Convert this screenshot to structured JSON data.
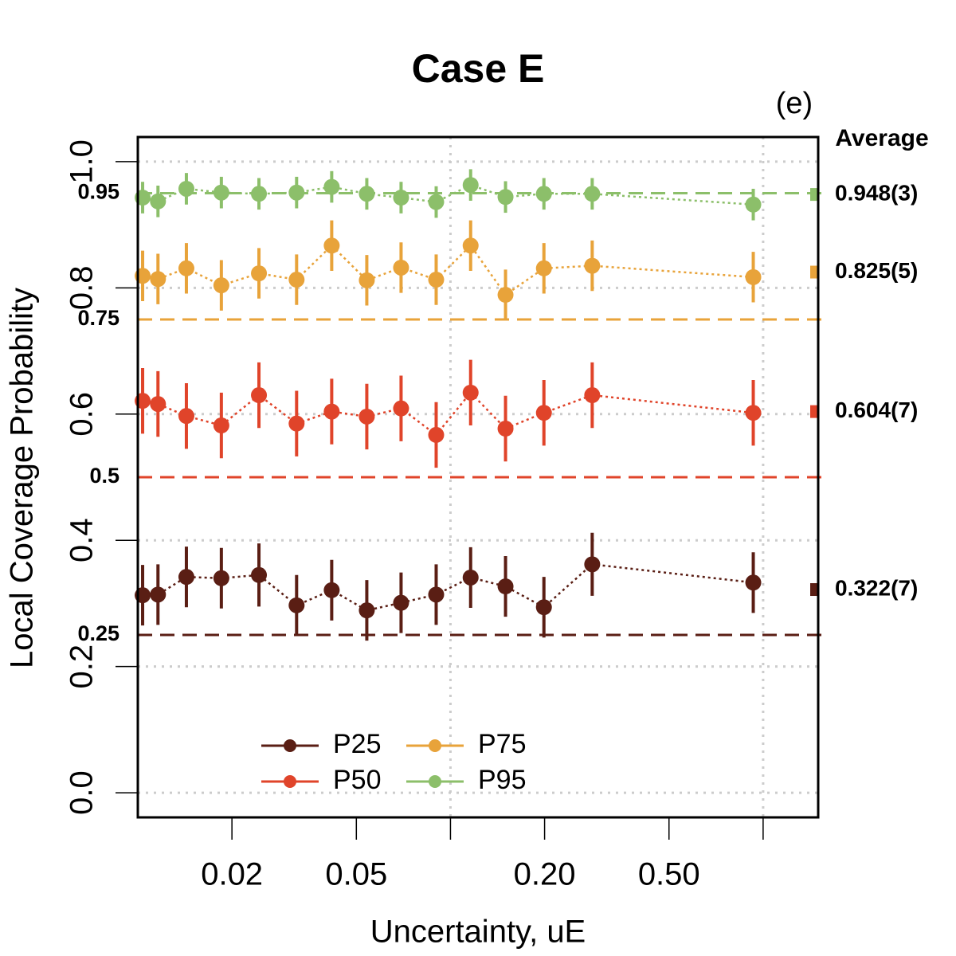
{
  "chart_data": {
    "type": "scatter",
    "title": "Case E",
    "annotation": "(e)",
    "average_title": "Average",
    "xlabel": "Uncertainty, uE",
    "ylabel": "Local Coverage Probability",
    "xscale": "log",
    "xlim": [
      0.01,
      1.5
    ],
    "xticks": [
      {
        "value": 0.02,
        "label": "0.02"
      },
      {
        "value": 0.05,
        "label": "0.05"
      },
      {
        "value": 0.2,
        "label": "0.20"
      },
      {
        "value": 0.5,
        "label": "0.50"
      }
    ],
    "xgrid": [
      0.1,
      1
    ],
    "ylim": [
      -0.039,
      1.039
    ],
    "yticks": [
      {
        "value": 0,
        "label": "0.0"
      },
      0.2,
      0.4,
      0.6,
      0.8,
      {
        "value": 1,
        "label": "1.0"
      }
    ],
    "grid": true,
    "legend": "bottom-left",
    "x": [
      0.01036,
      0.0116,
      0.0143,
      0.0185,
      0.0244,
      0.0322,
      0.0417,
      0.054,
      0.0695,
      0.09,
      0.116,
      0.15,
      0.199,
      0.284,
      0.93
    ],
    "series": [
      {
        "name": "P25",
        "color": "#5a1e14",
        "reference": 0.25,
        "average": 0.322,
        "average_label": "0.322(7)",
        "values": [
          0.313,
          0.314,
          0.342,
          0.34,
          0.345,
          0.297,
          0.321,
          0.289,
          0.301,
          0.314,
          0.341,
          0.327,
          0.294,
          0.362,
          0.333
        ],
        "errors": [
          0.048,
          0.048,
          0.048,
          0.048,
          0.05,
          0.048,
          0.048,
          0.048,
          0.048,
          0.048,
          0.048,
          0.048,
          0.048,
          0.05,
          0.048
        ]
      },
      {
        "name": "P50",
        "color": "#e0442a",
        "reference": 0.5,
        "average": 0.604,
        "average_label": "0.604(7)",
        "values": [
          0.621,
          0.616,
          0.597,
          0.582,
          0.63,
          0.585,
          0.604,
          0.596,
          0.609,
          0.567,
          0.634,
          0.577,
          0.602,
          0.63,
          0.602
        ],
        "errors": [
          0.052,
          0.052,
          0.052,
          0.052,
          0.052,
          0.052,
          0.052,
          0.052,
          0.052,
          0.052,
          0.052,
          0.052,
          0.052,
          0.052,
          0.052
        ]
      },
      {
        "name": "P75",
        "color": "#e8a33a",
        "reference": 0.75,
        "average": 0.825,
        "average_label": "0.825(5)",
        "values": [
          0.819,
          0.814,
          0.831,
          0.804,
          0.823,
          0.813,
          0.867,
          0.812,
          0.832,
          0.813,
          0.867,
          0.789,
          0.831,
          0.835,
          0.817
        ],
        "errors": [
          0.04,
          0.04,
          0.04,
          0.04,
          0.04,
          0.04,
          0.04,
          0.04,
          0.04,
          0.04,
          0.04,
          0.04,
          0.04,
          0.04,
          0.04
        ]
      },
      {
        "name": "P95",
        "color": "#8cbf6a",
        "reference": 0.95,
        "average": 0.948,
        "average_label": "0.948(3)",
        "values": [
          0.943,
          0.937,
          0.957,
          0.951,
          0.949,
          0.951,
          0.96,
          0.949,
          0.943,
          0.936,
          0.963,
          0.944,
          0.949,
          0.949,
          0.932
        ],
        "errors": [
          0.025,
          0.025,
          0.025,
          0.025,
          0.025,
          0.025,
          0.025,
          0.025,
          0.025,
          0.025,
          0.025,
          0.025,
          0.025,
          0.025,
          0.025
        ]
      }
    ]
  }
}
